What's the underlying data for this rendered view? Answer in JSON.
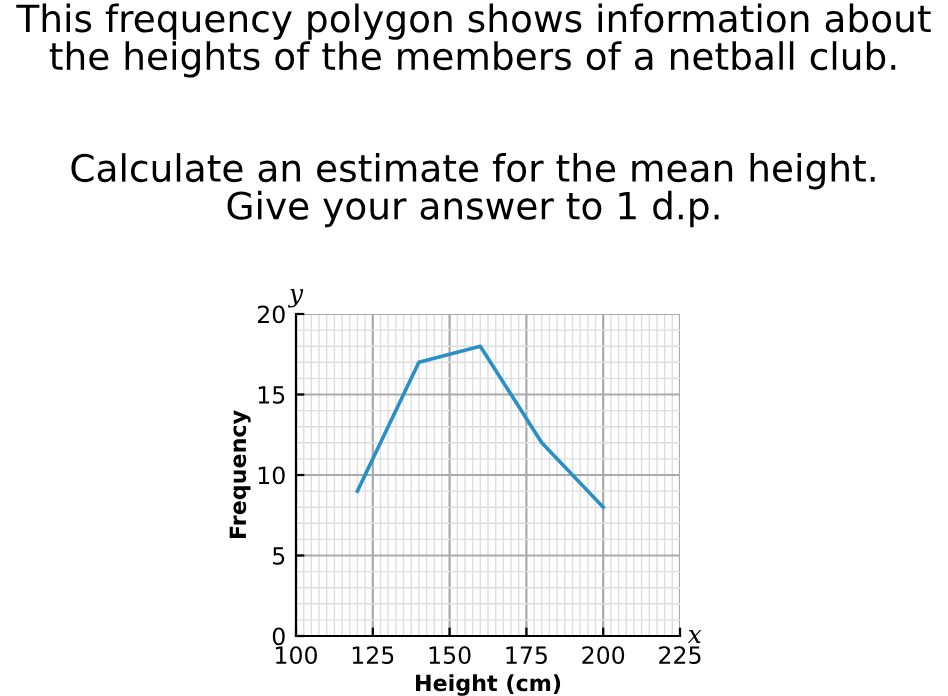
{
  "chart_data": {
    "type": "line",
    "title": "This frequency polygon shows information about\nthe heights of the members of a netball club.",
    "subtitle": "Calculate an estimate for the mean height.\nGive your answer to 1 d.p.",
    "xlabel": "Height (cm)",
    "ylabel": "Frequency",
    "annotations": [
      "x",
      "y"
    ],
    "x": [
      120,
      140,
      160,
      180,
      200
    ],
    "series": [
      {
        "color": "#2a8fc4",
        "values": [
          9,
          17,
          18,
          12,
          8
        ]
      }
    ],
    "xlim": [
      100,
      225
    ],
    "xticks": [
      100,
      125,
      150,
      175,
      200,
      225
    ],
    "ylim": [
      0,
      20
    ],
    "yticks": [
      0,
      5,
      10,
      15,
      20
    ],
    "grid": true,
    "marker": "none",
    "line_style": "solid",
    "legend": false
  }
}
